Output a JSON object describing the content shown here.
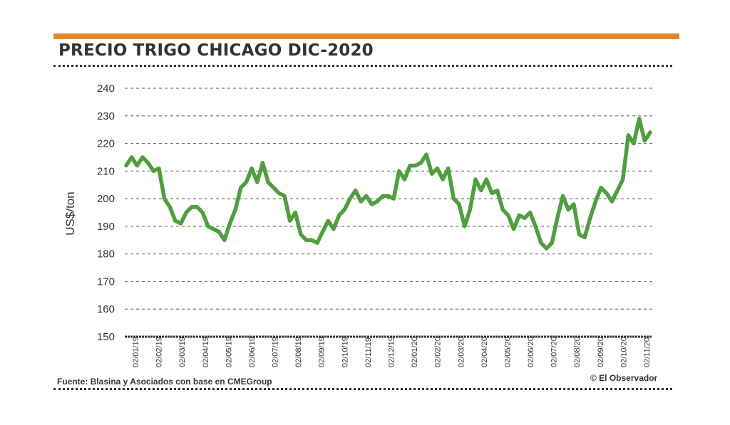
{
  "header": {
    "title": "PRECIO TRIGO CHICAGO DIC-2020",
    "accent_color": "#e8872a"
  },
  "footer": {
    "source": "Fuente: Blasina y Asociados con base en CMEGroup",
    "credit": "© El Observador"
  },
  "chart_data": {
    "type": "line",
    "title": "PRECIO TRIGO CHICAGO DIC-2020",
    "xlabel": "",
    "ylabel": "US$/ton",
    "ylim": [
      150,
      240
    ],
    "yticks": [
      150,
      160,
      170,
      180,
      190,
      200,
      210,
      220,
      230,
      240
    ],
    "grid": true,
    "legend": "none",
    "line_color": "#4f9e3f",
    "xtick_labels": [
      "02/01/19",
      "02/02/19",
      "02/03/19",
      "02/04/19",
      "02/05/19",
      "02/06/19",
      "02/07/19",
      "02/08/19",
      "02/09/19",
      "02/10/19",
      "02/11/19",
      "02/12/19",
      "02/01/20",
      "02/02/20",
      "02/03/20",
      "02/04/20",
      "02/05/20",
      "02/06/20",
      "02/07/20",
      "02/08/20",
      "02/09/20",
      "02/10/20",
      "02/11/20"
    ],
    "series": [
      {
        "name": "Precio trigo Chicago dic-2020 (US$/ton)",
        "values": [
          212,
          215,
          212,
          215,
          213,
          210,
          211,
          200,
          197,
          192,
          191,
          195,
          197,
          197,
          195,
          190,
          189,
          188,
          185,
          191,
          196,
          204,
          206,
          211,
          206,
          213,
          206,
          204,
          202,
          201,
          192,
          195,
          187,
          185,
          185,
          184,
          188,
          192,
          189,
          194,
          196,
          200,
          203,
          199,
          201,
          198,
          199,
          201,
          201,
          200,
          210,
          207,
          212,
          212,
          213,
          216,
          209,
          211,
          207,
          211,
          200,
          198,
          190,
          196,
          207,
          203,
          207,
          202,
          203,
          196,
          194,
          189,
          194,
          193,
          195,
          190,
          184,
          182,
          184,
          193,
          201,
          196,
          198,
          187,
          186,
          193,
          199,
          204,
          202,
          199,
          203,
          207,
          223,
          220,
          229,
          221,
          224
        ]
      }
    ]
  }
}
